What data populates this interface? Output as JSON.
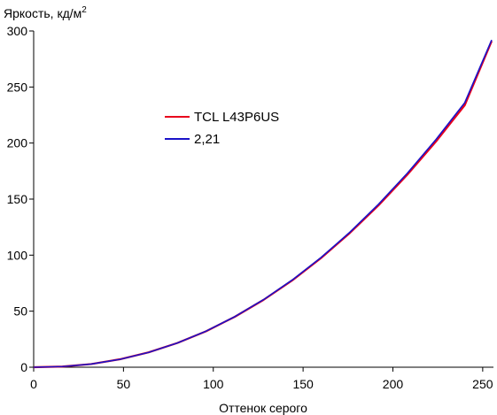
{
  "chart_data": {
    "type": "line",
    "ylabel": "Яркость, кд/м",
    "ylabel_superscript": "2",
    "xlabel": "Оттенок серого",
    "xlim": [
      0,
      255
    ],
    "ylim": [
      0,
      300
    ],
    "xticks": [
      0,
      50,
      100,
      150,
      200,
      250
    ],
    "yticks": [
      0,
      50,
      100,
      150,
      200,
      250,
      300
    ],
    "grid": false,
    "legend_position": "upper-left-center",
    "series": [
      {
        "name": "TCL L43P6US",
        "color": "#e8001c",
        "x": [
          0,
          16,
          32,
          48,
          64,
          80,
          96,
          112,
          128,
          144,
          160,
          176,
          192,
          208,
          224,
          240,
          255
        ],
        "y": [
          0,
          0.6,
          2.8,
          7.1,
          13.3,
          21.6,
          32.1,
          45.0,
          60.1,
          77.5,
          97.4,
          119.7,
          144.4,
          171.7,
          201.4,
          233.7,
          291
        ]
      },
      {
        "name": "2,21",
        "color": "#1a12c8",
        "x": [
          0,
          16,
          32,
          48,
          64,
          80,
          96,
          112,
          128,
          144,
          160,
          176,
          192,
          208,
          224,
          240,
          255
        ],
        "y": [
          0,
          0.6,
          2.8,
          7.0,
          13.2,
          21.6,
          32.2,
          45.1,
          60.3,
          77.9,
          97.9,
          120.4,
          145.4,
          173.0,
          203.2,
          236.0,
          292
        ]
      }
    ]
  }
}
